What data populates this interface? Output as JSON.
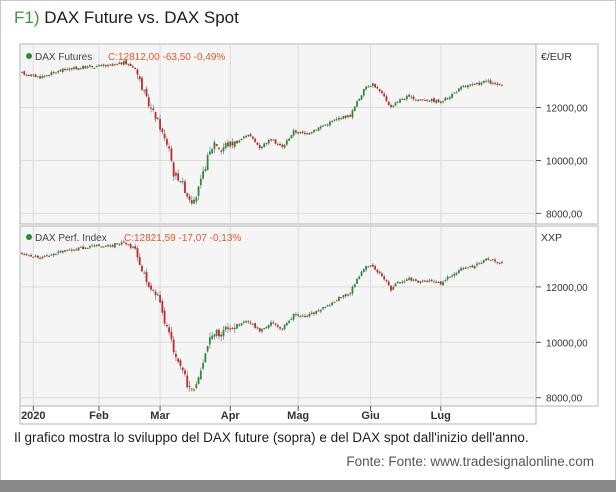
{
  "header": {
    "fig_label": "F1)",
    "title": "DAX Future vs. DAX Spot"
  },
  "caption": "Il grafico mostra lo sviluppo del DAX future (sopra) e del DAX spot dall'inizio dell'anno.",
  "source": "Fonte: Fonte: www.tradesignalonline.com",
  "colors": {
    "up": "#2e8b3a",
    "down": "#c62828",
    "line": "#8a8a8a",
    "legend_value": "#e05a2a",
    "legend_dot": "#2e8b3a"
  },
  "chart_data": [
    {
      "type": "candlestick",
      "name": "DAX Futures",
      "legend_value": "C:12812,00 -63,50 -0,49%",
      "unit": "€/EUR",
      "ylim": [
        7600,
        14400
      ],
      "yticks": [
        8000,
        10000,
        12000
      ],
      "ytick_labels": [
        "8000,00",
        "10000,00",
        "12000,00"
      ],
      "xlim": [
        0,
        220
      ],
      "x_tick_labels": [
        "2020",
        "Feb",
        "Mar",
        "Apr",
        "Mag",
        "Giu",
        "Lug"
      ],
      "x_tick_positions": [
        5,
        34,
        61,
        92,
        122,
        154,
        185
      ],
      "anchors": [
        [
          0,
          13300
        ],
        [
          8,
          13150
        ],
        [
          18,
          13420
        ],
        [
          30,
          13550
        ],
        [
          40,
          13580
        ],
        [
          45,
          13700
        ],
        [
          50,
          13500
        ],
        [
          55,
          12300
        ],
        [
          58,
          11800
        ],
        [
          60,
          11500
        ],
        [
          63,
          10800
        ],
        [
          65,
          10500
        ],
        [
          67,
          9500
        ],
        [
          70,
          9300
        ],
        [
          73,
          8700
        ],
        [
          76,
          8400
        ],
        [
          79,
          9200
        ],
        [
          82,
          10100
        ],
        [
          85,
          10700
        ],
        [
          88,
          10400
        ],
        [
          90,
          10600
        ],
        [
          95,
          10700
        ],
        [
          100,
          11000
        ],
        [
          105,
          10500
        ],
        [
          110,
          10800
        ],
        [
          115,
          10500
        ],
        [
          120,
          11100
        ],
        [
          125,
          11000
        ],
        [
          130,
          11200
        ],
        [
          135,
          11400
        ],
        [
          140,
          11600
        ],
        [
          145,
          11700
        ],
        [
          148,
          12200
        ],
        [
          152,
          12800
        ],
        [
          155,
          12900
        ],
        [
          160,
          12400
        ],
        [
          163,
          12000
        ],
        [
          165,
          12200
        ],
        [
          170,
          12400
        ],
        [
          175,
          12300
        ],
        [
          180,
          12300
        ],
        [
          185,
          12200
        ],
        [
          190,
          12500
        ],
        [
          195,
          12800
        ],
        [
          200,
          12850
        ],
        [
          205,
          13000
        ],
        [
          208,
          12900
        ],
        [
          212,
          12812
        ]
      ]
    },
    {
      "type": "candlestick",
      "name": "DAX Perf. Index",
      "legend_value": "C:12821,59 -17,07 -0,13%",
      "unit": "XXP",
      "ylim": [
        7700,
        14200
      ],
      "yticks": [
        8000,
        10000,
        12000
      ],
      "ytick_labels": [
        "8000,00",
        "10000,00",
        "12000,00"
      ],
      "xlim": [
        0,
        220
      ],
      "x_tick_labels": [
        "2020",
        "Feb",
        "Mar",
        "Apr",
        "Mag",
        "Giu",
        "Lug"
      ],
      "x_tick_positions": [
        5,
        34,
        61,
        92,
        122,
        154,
        185
      ],
      "anchors": [
        [
          0,
          13200
        ],
        [
          8,
          13050
        ],
        [
          18,
          13300
        ],
        [
          30,
          13450
        ],
        [
          40,
          13500
        ],
        [
          45,
          13650
        ],
        [
          50,
          13350
        ],
        [
          55,
          12200
        ],
        [
          58,
          11900
        ],
        [
          60,
          11600
        ],
        [
          63,
          10800
        ],
        [
          65,
          10400
        ],
        [
          67,
          9600
        ],
        [
          70,
          9200
        ],
        [
          73,
          8500
        ],
        [
          76,
          8300
        ],
        [
          79,
          9000
        ],
        [
          82,
          9900
        ],
        [
          85,
          10400
        ],
        [
          88,
          10300
        ],
        [
          90,
          10500
        ],
        [
          95,
          10600
        ],
        [
          100,
          10800
        ],
        [
          105,
          10400
        ],
        [
          110,
          10700
        ],
        [
          115,
          10500
        ],
        [
          120,
          11000
        ],
        [
          125,
          10900
        ],
        [
          130,
          11100
        ],
        [
          135,
          11300
        ],
        [
          140,
          11600
        ],
        [
          145,
          11800
        ],
        [
          148,
          12300
        ],
        [
          152,
          12800
        ],
        [
          155,
          12700
        ],
        [
          160,
          12300
        ],
        [
          163,
          11900
        ],
        [
          165,
          12100
        ],
        [
          170,
          12300
        ],
        [
          175,
          12200
        ],
        [
          180,
          12200
        ],
        [
          185,
          12100
        ],
        [
          190,
          12450
        ],
        [
          195,
          12700
        ],
        [
          200,
          12750
        ],
        [
          205,
          13000
        ],
        [
          208,
          12950
        ],
        [
          212,
          12822
        ]
      ]
    }
  ]
}
